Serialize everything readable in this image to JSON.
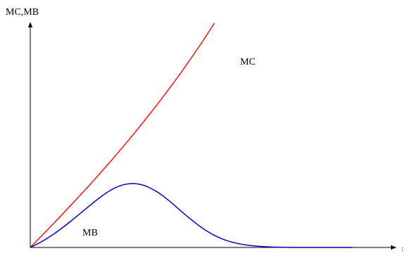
{
  "chart_data": {
    "type": "line",
    "ylabel": "MC,MB",
    "xlabel": ":",
    "grid": false,
    "x": [
      0,
      0.1,
      0.2,
      0.3,
      0.4,
      0.5,
      0.6,
      0.7,
      0.8,
      0.9,
      1.0,
      1.1,
      1.2,
      1.3,
      1.4,
      1.5,
      1.6,
      1.7,
      1.8,
      1.9,
      2.0
    ],
    "series": [
      {
        "name": "MC",
        "color": "#ee1111",
        "x": [
          0,
          0.25,
          0.5,
          0.75,
          1.0,
          1.25,
          1.5,
          1.75,
          2.0,
          2.25,
          2.5,
          2.75,
          3.0,
          3.25,
          3.5,
          3.75,
          4.0
        ],
        "values": [
          0,
          0.56,
          1.12,
          1.7,
          2.28,
          2.87,
          3.48,
          4.1,
          4.74,
          5.39,
          6.07,
          6.76,
          7.48,
          8.22,
          9.0,
          9.8,
          10.64
        ]
      },
      {
        "name": "MB",
        "color": "#0000cc",
        "x": [
          0,
          0.25,
          0.5,
          0.75,
          1.0,
          1.25,
          1.5,
          1.75,
          2.0,
          2.25,
          2.5,
          2.75,
          3.0,
          3.25,
          3.5,
          3.75,
          4.0,
          4.25,
          4.5,
          4.75,
          5.0,
          5.25,
          5.5,
          5.75,
          6.0,
          6.25,
          6.5,
          6.75,
          7.0
        ],
        "values": [
          0,
          0.28,
          0.62,
          1.02,
          1.46,
          1.91,
          2.35,
          2.72,
          2.96,
          3.03,
          2.92,
          2.64,
          2.24,
          1.77,
          1.31,
          0.9,
          0.57,
          0.34,
          0.19,
          0.1,
          0.05,
          0.02,
          0.01,
          0.0,
          0.0,
          0.0,
          0.0,
          0.0,
          0.0
        ]
      }
    ],
    "xlim": [
      0,
      7.8
    ],
    "ylim": [
      0,
      11
    ]
  }
}
